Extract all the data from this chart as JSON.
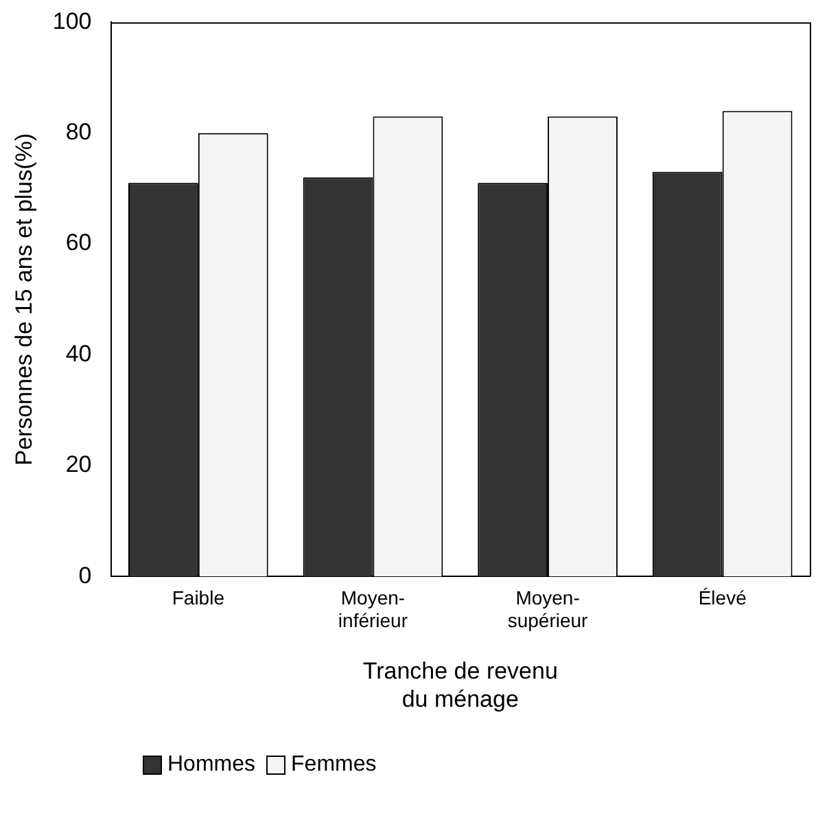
{
  "chart_data": {
    "type": "bar",
    "xlabel": "Tranche de revenu du ménage",
    "ylabel": "Personnes de 15 ans et plus(%)",
    "categories": [
      "Faible",
      "Moyen-inférieur",
      "Moyen-supérieur",
      "Élevé"
    ],
    "series": [
      {
        "name": "Hommes",
        "color": "#333333",
        "values": [
          71,
          72,
          71,
          73
        ]
      },
      {
        "name": "Femmes",
        "color": "#f4f4f4",
        "values": [
          80,
          83,
          83,
          84
        ]
      }
    ],
    "ylim": [
      0,
      100
    ],
    "yticks": [
      0,
      20,
      40,
      60,
      80,
      100
    ],
    "grid": false,
    "legend": "bottom"
  }
}
